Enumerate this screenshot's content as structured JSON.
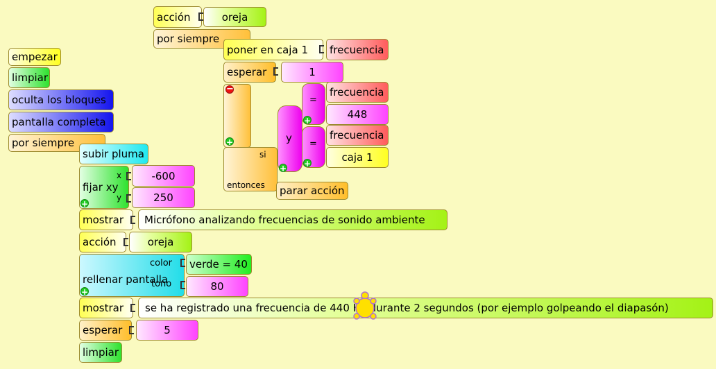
{
  "script_top": {
    "accion_label": "acción",
    "accion_value": "oreja",
    "por_siempre_label": "por siempre",
    "poner_label": "poner en caja 1",
    "poner_value": "frecuencia",
    "esperar_label": "esperar",
    "esperar_value": "1",
    "si_label": "si",
    "entonces_label": "entonces",
    "y_label": "y",
    "eq_symbol": "=",
    "eq1_left": "frecuencia",
    "eq1_right": "448",
    "eq2_left": "frecuencia",
    "eq2_right": "caja 1",
    "parar_label": "parar acción"
  },
  "script_main": {
    "empezar": "empezar",
    "limpiar": "limpiar",
    "oculta": "oculta los bloques",
    "pantalla": "pantalla completa",
    "por_siempre": "por siempre",
    "subir_pluma": "subir pluma",
    "fijar_xy": "fijar xy",
    "x_label": "x",
    "y_label": "y",
    "x_value": "-600",
    "y_value": "250",
    "mostrar1_label": "mostrar",
    "mostrar1_value": "Micrófono analizando frecuencias de sonido ambiente",
    "accion_label": "acción",
    "accion_value": "oreja",
    "rellenar_label": "rellenar pantalla",
    "color_label": "color",
    "tono_label": "tono",
    "color_value": "verde = 40",
    "tono_value": "80",
    "mostrar2_label": "mostrar",
    "mostrar2_value": "se ha registrado una frecuencia de 440 Hz durante 2 segundos (por ejemplo golpeando el diapasón)",
    "esperar_label": "esperar",
    "esperar_value": "5",
    "limpiar_end": "limpiar"
  },
  "icons": {
    "plus": "+",
    "minus": "−"
  }
}
